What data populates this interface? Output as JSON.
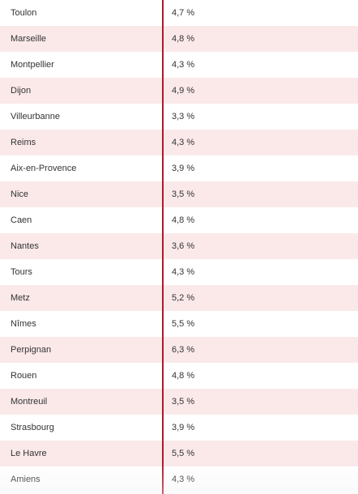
{
  "colors": {
    "row_shade": "#fbe9ea",
    "divider": "#b0192a",
    "text": "#333333"
  },
  "rows": [
    {
      "city": "Toulon",
      "rate": "4,7 %"
    },
    {
      "city": "Marseille",
      "rate": "4,8 %"
    },
    {
      "city": "Montpellier",
      "rate": "4,3 %"
    },
    {
      "city": "Dijon",
      "rate": "4,9 %"
    },
    {
      "city": "Villeurbanne",
      "rate": "3,3 %"
    },
    {
      "city": "Reims",
      "rate": "4,3 %"
    },
    {
      "city": "Aix-en-Provence",
      "rate": "3,9 %"
    },
    {
      "city": "Nice",
      "rate": "3,5 %"
    },
    {
      "city": "Caen",
      "rate": "4,8 %"
    },
    {
      "city": "Nantes",
      "rate": "3,6 %"
    },
    {
      "city": "Tours",
      "rate": "4,3 %"
    },
    {
      "city": "Metz",
      "rate": "5,2 %"
    },
    {
      "city": "Nîmes",
      "rate": "5,5 %"
    },
    {
      "city": "Perpignan",
      "rate": "6,3 %"
    },
    {
      "city": "Rouen",
      "rate": "4,8 %"
    },
    {
      "city": "Montreuil",
      "rate": "3,5 %"
    },
    {
      "city": "Strasbourg",
      "rate": "3,9 %"
    },
    {
      "city": "Le Havre",
      "rate": "5,5 %"
    },
    {
      "city": "Amiens",
      "rate": "4,3 %"
    }
  ]
}
